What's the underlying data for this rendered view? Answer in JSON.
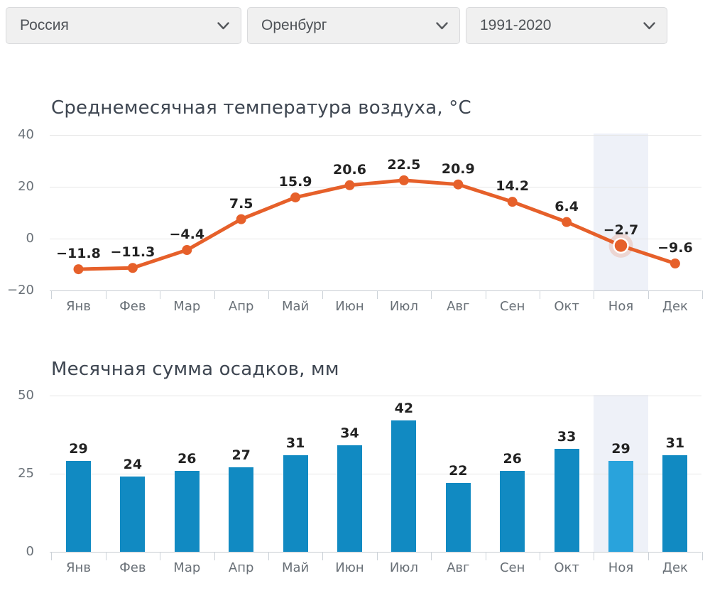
{
  "filters": {
    "country": "Россия",
    "city": "Оренбург",
    "period": "1991-2020"
  },
  "chart_data": [
    {
      "type": "line",
      "title": "Среднемесячная температура воздуха, °C",
      "categories": [
        "Янв",
        "Фев",
        "Мар",
        "Апр",
        "Май",
        "Июн",
        "Июл",
        "Авг",
        "Сен",
        "Окт",
        "Ноя",
        "Дек"
      ],
      "values": [
        -11.8,
        -11.3,
        -4.4,
        7.5,
        15.9,
        20.6,
        22.5,
        20.9,
        14.2,
        6.4,
        -2.7,
        -9.6
      ],
      "ylim": [
        -20,
        40
      ],
      "y_ticks": [
        40,
        20,
        0,
        -20
      ],
      "grid": true,
      "legend": "none",
      "highlighted_category": "Ноя",
      "series_color": "#e6602a",
      "band_color": "#eef1f8",
      "xlabel": "",
      "ylabel": ""
    },
    {
      "type": "bar",
      "title": "Месячная сумма осадков, мм",
      "categories": [
        "Янв",
        "Фев",
        "Мар",
        "Апр",
        "Май",
        "Июн",
        "Июл",
        "Авг",
        "Сен",
        "Окт",
        "Ноя",
        "Дек"
      ],
      "values": [
        29,
        24,
        26,
        27,
        31,
        34,
        42,
        22,
        26,
        33,
        29,
        31
      ],
      "ylim": [
        0,
        50
      ],
      "y_ticks": [
        50,
        25,
        0
      ],
      "grid": true,
      "legend": "none",
      "highlighted_category": "Ноя",
      "bar_color": "#118ac2",
      "highlight_bar_color": "#29a3dc",
      "band_color": "#eef1f8",
      "xlabel": "",
      "ylabel": ""
    }
  ]
}
